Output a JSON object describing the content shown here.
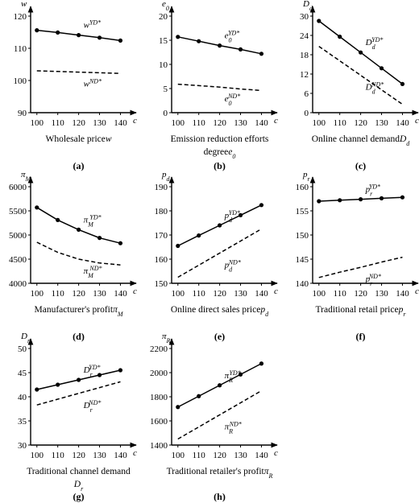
{
  "chart_data": [
    {
      "type": "line",
      "panel": "(a)",
      "ylabel": {
        "base": "w"
      },
      "xlabel": "c",
      "caption": [
        "Wholesale price"
      ],
      "caption_symbol": {
        "base": "w"
      },
      "x": [
        100,
        110,
        120,
        130,
        140
      ],
      "xlim": [
        97,
        146
      ],
      "xticks": [
        100,
        110,
        120,
        130,
        140
      ],
      "ylim": [
        90,
        120
      ],
      "yticks": [
        90,
        100,
        110,
        120
      ],
      "series": [
        {
          "name": {
            "base": "w",
            "sup": "YD*"
          },
          "color": "#000000",
          "dashed": false,
          "markers": true,
          "values": [
            115.6,
            114.9,
            114.1,
            113.3,
            112.4
          ]
        },
        {
          "name": {
            "base": "w",
            "sup": "ND*"
          },
          "color": "#000000",
          "dashed": true,
          "markers": false,
          "values": [
            103,
            102.8,
            102.6,
            102.4,
            102.2
          ]
        }
      ]
    },
    {
      "type": "line",
      "panel": "(b)",
      "ylabel": {
        "base": "e",
        "sub": "0"
      },
      "xlabel": "c",
      "caption": [
        "Emission reduction efforts",
        "degree"
      ],
      "caption_symbol": {
        "base": "e",
        "sub": "0"
      },
      "x": [
        100,
        110,
        120,
        130,
        140
      ],
      "xlim": [
        97,
        146
      ],
      "xticks": [
        100,
        110,
        120,
        130,
        140
      ],
      "ylim": [
        0,
        20
      ],
      "yticks": [
        0,
        5,
        10,
        15,
        20
      ],
      "series": [
        {
          "name": {
            "base": "e",
            "sub": "0",
            "sup": "YD*"
          },
          "color": "#000000",
          "dashed": false,
          "markers": true,
          "values": [
            15.7,
            14.8,
            13.9,
            13.1,
            12.2
          ]
        },
        {
          "name": {
            "base": "e",
            "sub": "0",
            "sup": "ND*"
          },
          "color": "#000000",
          "dashed": true,
          "markers": false,
          "values": [
            5.9,
            5.6,
            5.3,
            4.9,
            4.6
          ]
        }
      ]
    },
    {
      "type": "line",
      "panel": "(c)",
      "ylabel": {
        "base": "D",
        "sub": "d"
      },
      "xlabel": "c",
      "caption": [
        "Online channel demand"
      ],
      "caption_symbol": {
        "base": "D",
        "sub": "d"
      },
      "x": [
        100,
        110,
        120,
        130,
        140
      ],
      "xlim": [
        97,
        146
      ],
      "xticks": [
        100,
        110,
        120,
        130,
        140
      ],
      "ylim": [
        0,
        30
      ],
      "yticks": [
        0,
        6,
        12,
        18,
        24,
        30
      ],
      "series": [
        {
          "name": {
            "base": "D",
            "sub": "d",
            "sup": "YD*"
          },
          "color": "#000000",
          "dashed": false,
          "markers": true,
          "values": [
            28.5,
            23.6,
            18.7,
            13.8,
            8.9
          ]
        },
        {
          "name": {
            "base": "D",
            "sub": "d",
            "sup": "ND*"
          },
          "color": "#000000",
          "dashed": true,
          "markers": false,
          "values": [
            20.6,
            16.1,
            11.6,
            7.1,
            2.6
          ]
        }
      ]
    },
    {
      "type": "line",
      "panel": "(d)",
      "ylabel": {
        "base": "π",
        "sub": "M"
      },
      "xlabel": "c",
      "caption": [
        "Manufacturer's profit"
      ],
      "caption_symbol": {
        "base": "π",
        "sub": "M"
      },
      "x": [
        100,
        110,
        120,
        130,
        140
      ],
      "xlim": [
        97,
        146
      ],
      "xticks": [
        100,
        110,
        120,
        130,
        140
      ],
      "ylim": [
        4000,
        6000
      ],
      "yticks": [
        4000,
        4500,
        5000,
        5500,
        6000
      ],
      "series": [
        {
          "name": {
            "base": "π",
            "sub": "M",
            "sup": "YD*"
          },
          "color": "#000000",
          "dashed": false,
          "markers": true,
          "values": [
            5570,
            5310,
            5110,
            4940,
            4830
          ]
        },
        {
          "name": {
            "base": "π",
            "sub": "M",
            "sup": "ND*"
          },
          "color": "#000000",
          "dashed": true,
          "markers": false,
          "values": [
            4850,
            4640,
            4500,
            4420,
            4380
          ]
        }
      ]
    },
    {
      "type": "line",
      "panel": "(e)",
      "ylabel": {
        "base": "p",
        "sub": "d"
      },
      "xlabel": "c",
      "caption": [
        "Online direct sales price"
      ],
      "caption_symbol": {
        "base": "p",
        "sub": "d"
      },
      "x": [
        100,
        110,
        120,
        130,
        140
      ],
      "xlim": [
        97,
        146
      ],
      "xticks": [
        100,
        110,
        120,
        130,
        140
      ],
      "ylim": [
        150,
        190
      ],
      "yticks": [
        150,
        160,
        170,
        180,
        190
      ],
      "series": [
        {
          "name": {
            "base": "p",
            "sub": "d",
            "sup": "YD*"
          },
          "color": "#000000",
          "dashed": false,
          "markers": true,
          "values": [
            165.5,
            169.8,
            174,
            178.2,
            182.4
          ]
        },
        {
          "name": {
            "base": "p",
            "sub": "d",
            "sup": "ND*"
          },
          "color": "#000000",
          "dashed": true,
          "markers": false,
          "values": [
            152.5,
            157.5,
            162.5,
            167.5,
            172.5
          ]
        }
      ]
    },
    {
      "type": "line",
      "panel": "(f)",
      "ylabel": {
        "base": "p",
        "sub": "r"
      },
      "xlabel": "c",
      "caption": [
        "Traditional retail price"
      ],
      "caption_symbol": {
        "base": "p",
        "sub": "r"
      },
      "x": [
        100,
        110,
        120,
        130,
        140
      ],
      "xlim": [
        97,
        146
      ],
      "xticks": [
        100,
        110,
        120,
        130,
        140
      ],
      "ylim": [
        140,
        160
      ],
      "yticks": [
        140,
        145,
        150,
        155,
        160
      ],
      "series": [
        {
          "name": {
            "base": "p",
            "sub": "r",
            "sup": "YD*"
          },
          "color": "#000000",
          "dashed": false,
          "markers": true,
          "values": [
            157,
            157.2,
            157.4,
            157.6,
            157.8
          ]
        },
        {
          "name": {
            "base": "p",
            "sub": "r",
            "sup": "ND*"
          },
          "color": "#000000",
          "dashed": true,
          "markers": false,
          "values": [
            141.2,
            142.3,
            143.3,
            144.4,
            145.4
          ]
        }
      ]
    },
    {
      "type": "line",
      "panel": "(g)",
      "ylabel": {
        "base": "D",
        "sub": "r"
      },
      "xlabel": "c",
      "caption": [
        "Traditional channel demand"
      ],
      "caption_symbol": {
        "base": "D",
        "sub": "r"
      },
      "caption_symbol_own_line": true,
      "x": [
        100,
        110,
        120,
        130,
        140
      ],
      "xlim": [
        97,
        146
      ],
      "xticks": [
        100,
        110,
        120,
        130,
        140
      ],
      "ylim": [
        30,
        50
      ],
      "yticks": [
        30,
        35,
        40,
        45,
        50
      ],
      "series": [
        {
          "name": {
            "base": "D",
            "sub": "r",
            "sup": "YD*"
          },
          "color": "#000000",
          "dashed": false,
          "markers": true,
          "values": [
            41.5,
            42.5,
            43.5,
            44.5,
            45.5
          ]
        },
        {
          "name": {
            "base": "D",
            "sub": "r",
            "sup": "ND*"
          },
          "color": "#000000",
          "dashed": true,
          "markers": false,
          "values": [
            38.3,
            39.5,
            40.7,
            41.9,
            43.1
          ]
        }
      ]
    },
    {
      "type": "line",
      "panel": "(h)",
      "ylabel": {
        "base": "π",
        "sub": "R"
      },
      "xlabel": "c",
      "caption": [
        "Traditional retailer's profit"
      ],
      "caption_symbol": {
        "base": "π",
        "sub": "R"
      },
      "x": [
        100,
        110,
        120,
        130,
        140
      ],
      "xlim": [
        97,
        146
      ],
      "xticks": [
        100,
        110,
        120,
        130,
        140
      ],
      "ylim": [
        1400,
        2200
      ],
      "yticks": [
        1400,
        1600,
        1800,
        2000,
        2200
      ],
      "series": [
        {
          "name": {
            "base": "π",
            "sub": "R",
            "sup": "YD*"
          },
          "color": "#000000",
          "dashed": false,
          "markers": true,
          "values": [
            1715,
            1805,
            1895,
            1985,
            2075
          ]
        },
        {
          "name": {
            "base": "π",
            "sub": "R",
            "sup": "ND*"
          },
          "color": "#000000",
          "dashed": true,
          "markers": false,
          "values": [
            1450,
            1550,
            1650,
            1750,
            1850
          ]
        }
      ]
    }
  ]
}
